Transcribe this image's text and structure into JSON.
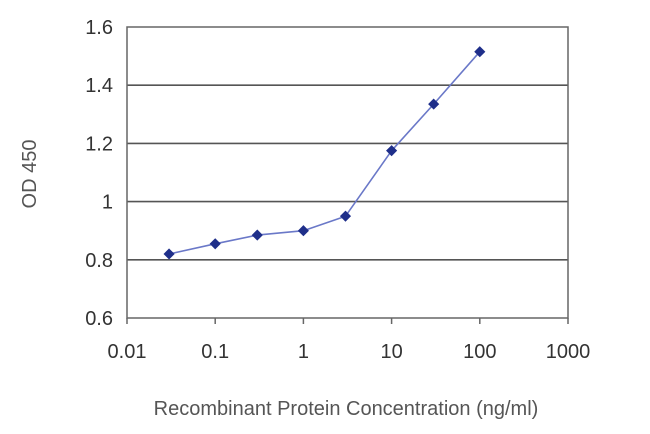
{
  "chart_data": {
    "type": "line",
    "title": "",
    "xlabel": "Recombinant Protein Concentration (ng/ml)",
    "ylabel": "OD 450",
    "x_scale": "log",
    "xlim": [
      0.01,
      1000
    ],
    "ylim": [
      0.6,
      1.6
    ],
    "x_ticks": [
      0.01,
      0.1,
      1,
      10,
      100,
      1000
    ],
    "x_tick_labels": [
      "0.01",
      "0.1",
      "1",
      "10",
      "100",
      "1000"
    ],
    "y_ticks": [
      0.6,
      0.8,
      1.0,
      1.2,
      1.4,
      1.6
    ],
    "y_tick_labels": [
      "0.6",
      "0.8",
      "1",
      "1.2",
      "1.4",
      "1.6"
    ],
    "grid": "horizontal",
    "legend": "none",
    "series": [
      {
        "color": "#1f2f8a",
        "marker": "diamond",
        "x": [
          0.03,
          0.1,
          0.3,
          1,
          3,
          10,
          30,
          100
        ],
        "y": [
          0.82,
          0.855,
          0.885,
          0.9,
          0.95,
          1.175,
          1.335,
          1.515
        ]
      }
    ]
  }
}
